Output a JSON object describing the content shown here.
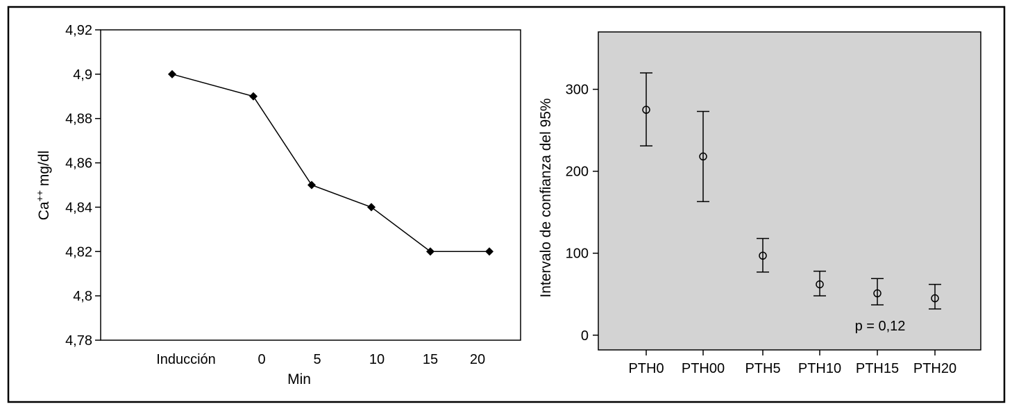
{
  "chart_data": [
    {
      "type": "line",
      "xlabel": "Min",
      "ylabel": "Ca++ mg/dl",
      "ylabel_base": "Ca",
      "ylabel_sup": "++",
      "ylabel_rest": " mg/dl",
      "categories": [
        "Inducción",
        "0",
        "5",
        "10",
        "15",
        "20"
      ],
      "values": [
        4.9,
        4.89,
        4.85,
        4.84,
        4.82,
        4.82
      ],
      "ylim": [
        4.78,
        4.92
      ],
      "yticks": [
        4.78,
        4.8,
        4.82,
        4.84,
        4.86,
        4.88,
        4.9,
        4.92
      ],
      "ytick_labels": [
        "4,78",
        "4,8",
        "4,82",
        "4,84",
        "4,86",
        "4,88",
        "4,9",
        "4,92"
      ],
      "marker": "diamond",
      "grid": false
    },
    {
      "type": "errorbar",
      "ylabel": "Intervalo de confianza del 95%",
      "categories": [
        "PTH0",
        "PTH00",
        "PTH5",
        "PTH10",
        "PTH15",
        "PTH20"
      ],
      "means": [
        275,
        218,
        97,
        62,
        51,
        45
      ],
      "lower": [
        231,
        163,
        77,
        48,
        37,
        32
      ],
      "upper": [
        320,
        273,
        118,
        78,
        69,
        62
      ],
      "ylim": [
        -18,
        370
      ],
      "yticks": [
        0,
        100,
        200,
        300
      ],
      "ytick_labels": [
        "0",
        "100",
        "200",
        "300"
      ],
      "background": "#d3d3d3",
      "annotation": "p = 0,12",
      "grid": false
    }
  ]
}
